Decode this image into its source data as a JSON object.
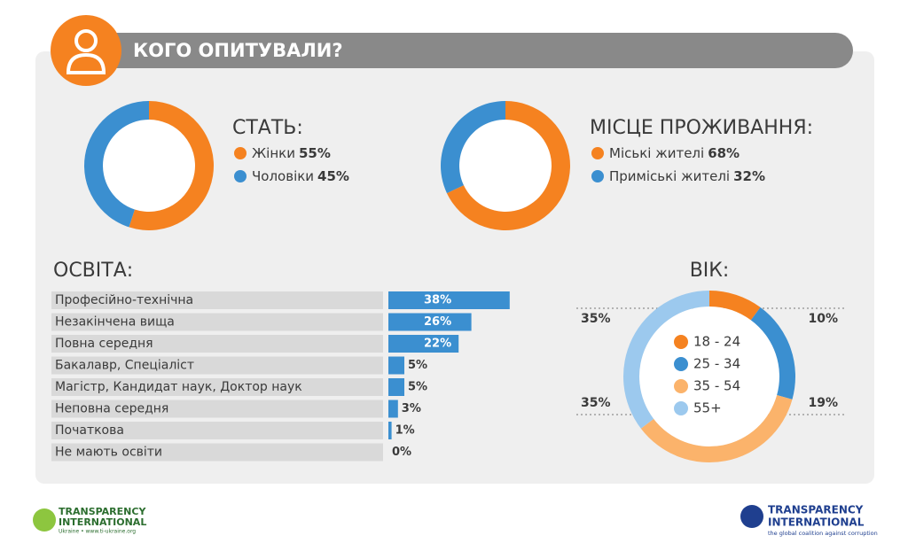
{
  "header": {
    "title": "КОГО ОПИТУВАЛИ?"
  },
  "chart_data": [
    {
      "type": "donut",
      "title": "СТАТЬ:",
      "categories": [
        "Жінки",
        "Чоловіки"
      ],
      "values": [
        55,
        45
      ],
      "value_labels": [
        "55%",
        "45%"
      ],
      "colors": [
        "#f58220",
        "#3b8fd0"
      ]
    },
    {
      "type": "donut",
      "title": "МІСЦЕ ПРОЖИВАННЯ:",
      "categories": [
        "Міські жителі",
        "Приміські жителі"
      ],
      "values": [
        68,
        32
      ],
      "value_labels": [
        "68%",
        "32%"
      ],
      "colors": [
        "#f58220",
        "#3b8fd0"
      ]
    },
    {
      "type": "bar",
      "title": "ОСВІТА:",
      "categories": [
        "Професійно-технічна",
        "Незакінчена вища",
        "Повна середня",
        "Бакалавр, Спеціаліст",
        "Магістр, Кандидат наук, Доктор наук",
        "Неповна середня",
        "Початкова",
        "Не мають освіти"
      ],
      "values": [
        38,
        26,
        22,
        5,
        5,
        3,
        1,
        0
      ],
      "value_labels": [
        "38%",
        "26%",
        "22%",
        "5%",
        "5%",
        "3%",
        "1%",
        "0%"
      ],
      "color": "#3b8fd0"
    },
    {
      "type": "ring",
      "title": "ВІК:",
      "categories": [
        "18 - 24",
        "25 - 34",
        "35 - 54",
        "55+"
      ],
      "values": [
        10,
        19,
        35,
        35
      ],
      "value_labels": [
        "10%",
        "19%",
        "35%",
        "35%"
      ],
      "colors": [
        "#f58220",
        "#3b8fd0",
        "#fbb36b",
        "#9cc9ee"
      ]
    }
  ],
  "footer": {
    "left_logo": {
      "line1": "TRANSPARENCY",
      "line2": "INTERNATIONAL",
      "sub": "Ukraine  •  www.ti-ukraine.org"
    },
    "right_logo": {
      "line1": "TRANSPARENCY",
      "line2": "INTERNATIONAL",
      "sub": "the global coalition against corruption"
    }
  }
}
